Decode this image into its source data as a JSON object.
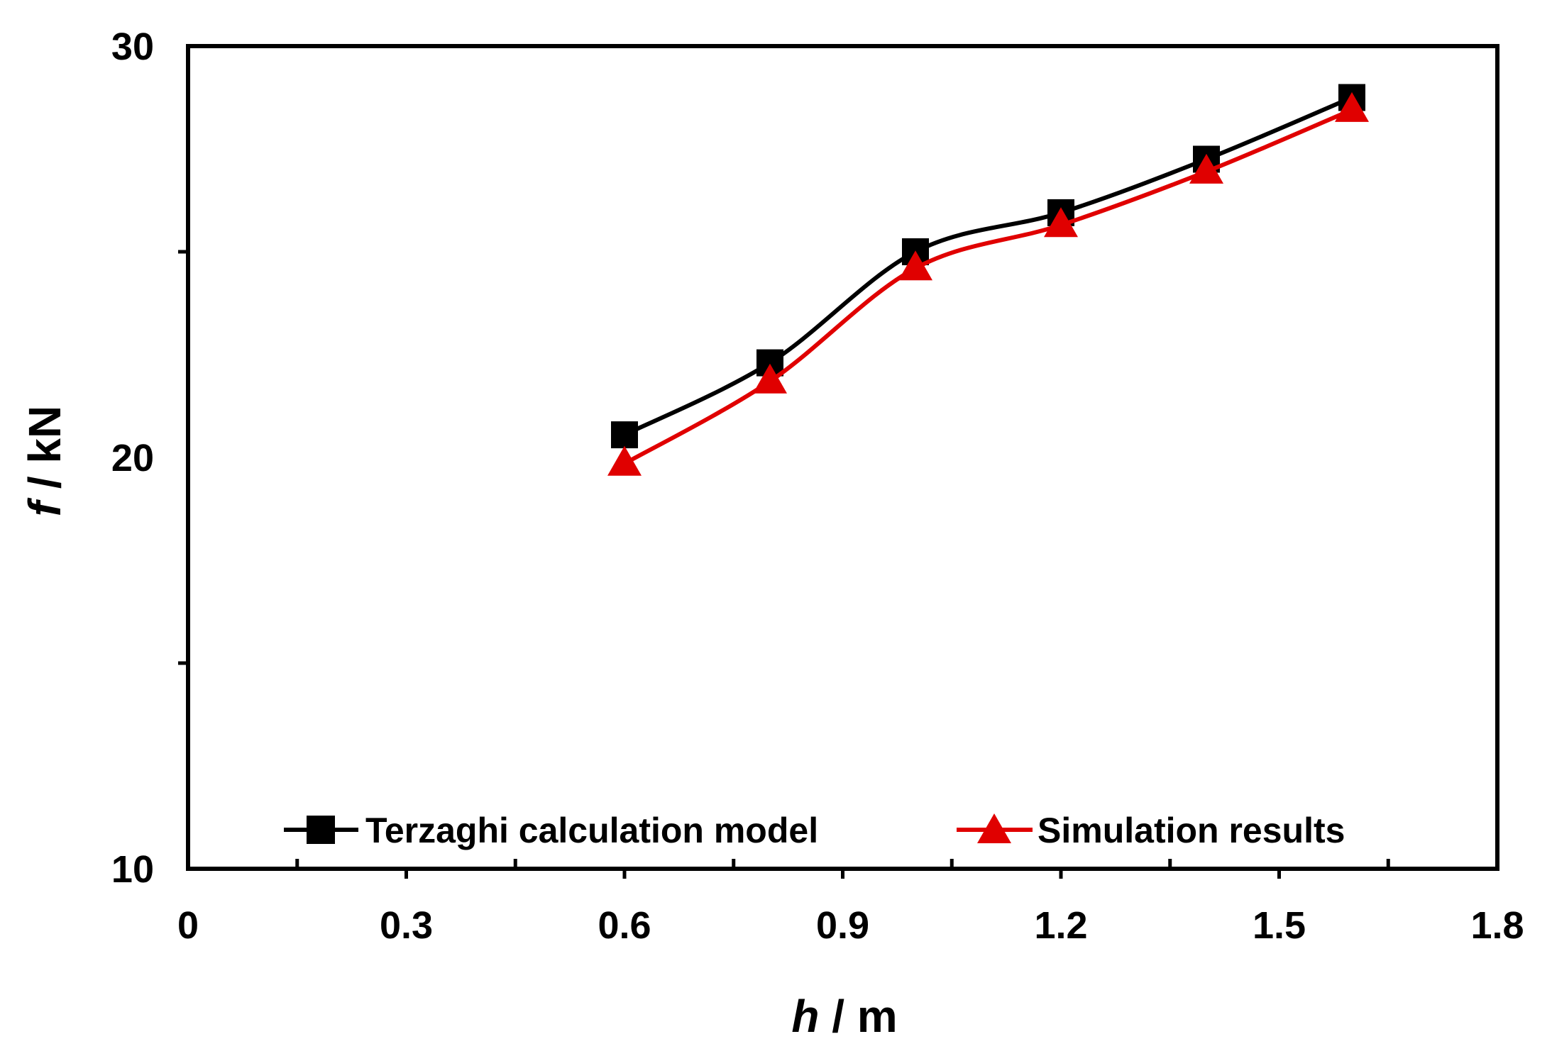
{
  "chart_data": {
    "type": "line",
    "title": "",
    "x": [
      0.6,
      0.8,
      1.0,
      1.2,
      1.4,
      1.6
    ],
    "series": [
      {
        "name": "Terzaghi calculation model",
        "marker": "square",
        "color": "#000000",
        "values": [
          20.55,
          22.3,
          25.0,
          25.95,
          27.25,
          28.75
        ]
      },
      {
        "name": "Simulation results",
        "marker": "triangle",
        "color": "#e00000",
        "values": [
          19.85,
          21.85,
          24.6,
          25.65,
          26.95,
          28.45
        ]
      }
    ],
    "xlim": [
      0,
      1.8
    ],
    "ylim": [
      10,
      30
    ],
    "xticks": [
      0,
      0.3,
      0.6,
      0.9,
      1.2,
      1.5,
      1.8
    ],
    "xtick_labels": [
      "0",
      "0.3",
      "0.6",
      "0.9",
      "1.2",
      "1.5",
      "1.8"
    ],
    "x_minor_ticks": [
      0.15,
      0.45,
      0.75,
      1.05,
      1.35,
      1.65
    ],
    "yticks": [
      10,
      20,
      30
    ],
    "ytick_labels": [
      "10",
      "20",
      "30"
    ],
    "y_minor_ticks": [
      15,
      25
    ],
    "xlabel": {
      "var": "h",
      "unit": " / m"
    },
    "ylabel": {
      "var": "f",
      "unit": " / kN"
    },
    "grid": false,
    "legend_position": "bottom"
  }
}
